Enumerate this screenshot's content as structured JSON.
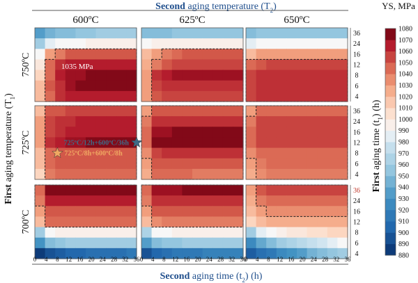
{
  "chart_data": {
    "type": "heatmap",
    "top_title_bold": "Second",
    "top_title_rest": " aging temperature (T",
    "top_title_sub": "2",
    "top_title_end": ")",
    "bottom_title_bold": "Second",
    "bottom_title_rest": " aging time (t",
    "bottom_title_sub": "2",
    "bottom_title_end": ") (h)",
    "left_title_bold": "First",
    "left_title_rest": " aging temperature (T",
    "left_title_sub": "1",
    "left_title_end": ")",
    "right_title_bold": "First",
    "right_title_rest": " aging time (t",
    "right_title_sub": "1",
    "right_title_end": ") (h)",
    "col_labels": [
      "600ºC",
      "625ºC",
      "650ºC"
    ],
    "row_labels": [
      "750ºC",
      "725ºC",
      "700ºC"
    ],
    "x_ticks": [
      0,
      4,
      8,
      12,
      16,
      20,
      24,
      28,
      32,
      36
    ],
    "y_ticks": [
      4,
      6,
      8,
      12,
      16,
      24,
      36
    ],
    "colorbar": {
      "title": "YS, MPa",
      "min": 880,
      "max": 1080,
      "ticks": [
        880,
        890,
        900,
        910,
        920,
        930,
        940,
        950,
        960,
        970,
        980,
        990,
        1000,
        1010,
        1020,
        1030,
        1040,
        1050,
        1060,
        1070,
        1080
      ]
    },
    "annotations": [
      {
        "text": "1035 MPa",
        "row": 0,
        "col": 0
      },
      {
        "text": "725ºC/12h+600ºC/36h",
        "row": 1,
        "col": 0,
        "x": 36,
        "y": 12,
        "marker": "star",
        "color": "#3f6a86"
      },
      {
        "text": "725ºC/8h+600ºC/8h",
        "row": 1,
        "col": 0,
        "x": 8,
        "y": 8,
        "marker": "star",
        "color": "#f0a862"
      }
    ],
    "panels": [
      {
        "row": 0,
        "col": 0,
        "t1": [
          {
            "t1": 36,
            "ys": [
              935,
              945,
              950,
              950,
              955,
              955,
              960,
              960,
              960,
              960
            ]
          },
          {
            "t1": 24,
            "ys": [
              960,
              985,
              990,
              990,
              990,
              995,
              995,
              995,
              995,
              995
            ]
          },
          {
            "t1": 16,
            "ys": [
              990,
              1030,
              1040,
              1050,
              1050,
              1050,
              1050,
              1050,
              1050,
              1050
            ]
          },
          {
            "t1": 12,
            "ys": [
              1000,
              1045,
              1060,
              1065,
              1065,
              1065,
              1065,
              1065,
              1065,
              1065
            ]
          },
          {
            "t1": 8,
            "ys": [
              1010,
              1045,
              1065,
              1070,
              1070,
              1075,
              1075,
              1075,
              1075,
              1075
            ]
          },
          {
            "t1": 6,
            "ys": [
              1020,
              1050,
              1060,
              1070,
              1075,
              1075,
              1075,
              1075,
              1075,
              1075
            ]
          },
          {
            "t1": 4,
            "ys": [
              1020,
              1045,
              1060,
              1065,
              1065,
              1065,
              1065,
              1065,
              1065,
              1065
            ]
          }
        ]
      },
      {
        "row": 0,
        "col": 1,
        "t1": [
          {
            "t1": 36,
            "ys": [
              950,
              950,
              950,
              955,
              955,
              955,
              955,
              955,
              955,
              955
            ]
          },
          {
            "t1": 24,
            "ys": [
              990,
              995,
              995,
              995,
              995,
              995,
              995,
              995,
              995,
              995
            ]
          },
          {
            "t1": 16,
            "ys": [
              1020,
              1030,
              1040,
              1045,
              1050,
              1050,
              1050,
              1050,
              1050,
              1050
            ]
          },
          {
            "t1": 12,
            "ys": [
              1025,
              1040,
              1050,
              1055,
              1055,
              1055,
              1055,
              1055,
              1055,
              1055
            ]
          },
          {
            "t1": 8,
            "ys": [
              1030,
              1060,
              1065,
              1070,
              1070,
              1070,
              1070,
              1070,
              1070,
              1070
            ]
          },
          {
            "t1": 6,
            "ys": [
              1030,
              1055,
              1060,
              1060,
              1060,
              1060,
              1060,
              1060,
              1060,
              1060
            ]
          },
          {
            "t1": 4,
            "ys": [
              1030,
              1050,
              1055,
              1055,
              1055,
              1055,
              1055,
              1055,
              1055,
              1055
            ]
          }
        ]
      },
      {
        "row": 0,
        "col": 2,
        "t1": [
          {
            "t1": 36,
            "ys": [
              950,
              955,
              955,
              955,
              955,
              955,
              955,
              955,
              955,
              955
            ]
          },
          {
            "t1": 24,
            "ys": [
              985,
              990,
              990,
              990,
              990,
              990,
              990,
              990,
              990,
              990
            ]
          },
          {
            "t1": 16,
            "ys": [
              1020,
              1030,
              1030,
              1030,
              1030,
              1030,
              1030,
              1030,
              1030,
              1030
            ]
          },
          {
            "t1": 12,
            "ys": [
              1045,
              1050,
              1055,
              1055,
              1055,
              1055,
              1055,
              1055,
              1055,
              1055
            ]
          },
          {
            "t1": 8,
            "ys": [
              1055,
              1060,
              1060,
              1060,
              1060,
              1060,
              1060,
              1060,
              1060,
              1060
            ]
          },
          {
            "t1": 6,
            "ys": [
              1055,
              1060,
              1060,
              1060,
              1060,
              1060,
              1060,
              1060,
              1060,
              1060
            ]
          },
          {
            "t1": 4,
            "ys": [
              1055,
              1060,
              1060,
              1060,
              1060,
              1060,
              1060,
              1060,
              1060,
              1060
            ]
          }
        ]
      },
      {
        "row": 1,
        "col": 0,
        "t1": [
          {
            "t1": 36,
            "ys": [
              1020,
              1050,
              1050,
              1055,
              1055,
              1055,
              1055,
              1055,
              1055,
              1055
            ]
          },
          {
            "t1": 24,
            "ys": [
              1030,
              1055,
              1060,
              1060,
              1065,
              1065,
              1065,
              1065,
              1065,
              1065
            ]
          },
          {
            "t1": 16,
            "ys": [
              1030,
              1055,
              1060,
              1065,
              1065,
              1065,
              1065,
              1065,
              1065,
              1065
            ]
          },
          {
            "t1": 12,
            "ys": [
              1030,
              1060,
              1065,
              1070,
              1070,
              1075,
              1075,
              1075,
              1075,
              1075
            ]
          },
          {
            "t1": 8,
            "ys": [
              1020,
              1045,
              1050,
              1050,
              1050,
              1050,
              1050,
              1050,
              1050,
              1050
            ]
          },
          {
            "t1": 6,
            "ys": [
              1020,
              1045,
              1050,
              1050,
              1050,
              1050,
              1050,
              1050,
              1050,
              1050
            ]
          },
          {
            "t1": 4,
            "ys": [
              1010,
              1040,
              1045,
              1045,
              1045,
              1045,
              1045,
              1045,
              1045,
              1045
            ]
          }
        ]
      },
      {
        "row": 1,
        "col": 1,
        "t1": [
          {
            "t1": 36,
            "ys": [
              1030,
              1050,
              1050,
              1050,
              1050,
              1050,
              1050,
              1050,
              1050,
              1050
            ]
          },
          {
            "t1": 24,
            "ys": [
              1040,
              1060,
              1060,
              1060,
              1060,
              1060,
              1060,
              1060,
              1060,
              1060
            ]
          },
          {
            "t1": 16,
            "ys": [
              1045,
              1070,
              1070,
              1075,
              1075,
              1075,
              1075,
              1075,
              1075,
              1075
            ]
          },
          {
            "t1": 12,
            "ys": [
              1045,
              1075,
              1075,
              1075,
              1075,
              1075,
              1075,
              1075,
              1075,
              1075
            ]
          },
          {
            "t1": 8,
            "ys": [
              1035,
              1055,
              1060,
              1060,
              1060,
              1060,
              1060,
              1060,
              1060,
              1060
            ]
          },
          {
            "t1": 6,
            "ys": [
              1030,
              1050,
              1050,
              1050,
              1050,
              1050,
              1050,
              1050,
              1050,
              1050
            ]
          },
          {
            "t1": 4,
            "ys": [
              1025,
              1045,
              1045,
              1045,
              1045,
              1040,
              1040,
              1040,
              1040,
              1040
            ]
          }
        ]
      },
      {
        "row": 1,
        "col": 2,
        "t1": [
          {
            "t1": 36,
            "ys": [
              1030,
              1045,
              1045,
              1045,
              1045,
              1045,
              1045,
              1045,
              1045,
              1045
            ]
          },
          {
            "t1": 24,
            "ys": [
              1040,
              1055,
              1055,
              1055,
              1055,
              1055,
              1055,
              1055,
              1055,
              1055
            ]
          },
          {
            "t1": 16,
            "ys": [
              1045,
              1055,
              1055,
              1055,
              1055,
              1055,
              1055,
              1055,
              1055,
              1055
            ]
          },
          {
            "t1": 12,
            "ys": [
              1045,
              1055,
              1055,
              1055,
              1055,
              1055,
              1055,
              1055,
              1055,
              1055
            ]
          },
          {
            "t1": 8,
            "ys": [
              1035,
              1045,
              1045,
              1045,
              1045,
              1045,
              1045,
              1045,
              1045,
              1045
            ]
          },
          {
            "t1": 6,
            "ys": [
              1030,
              1040,
              1045,
              1045,
              1045,
              1045,
              1045,
              1045,
              1045,
              1045
            ]
          },
          {
            "t1": 4,
            "ys": [
              1025,
              1035,
              1040,
              1040,
              1040,
              1040,
              1040,
              1040,
              1040,
              1040
            ]
          }
        ]
      },
      {
        "row": 2,
        "col": 0,
        "t1": [
          {
            "t1": 36,
            "ys": [
              1045,
              1075,
              1075,
              1075,
              1075,
              1075,
              1075,
              1075,
              1075,
              1075
            ]
          },
          {
            "t1": 24,
            "ys": [
              1040,
              1065,
              1065,
              1065,
              1065,
              1065,
              1065,
              1065,
              1065,
              1065
            ]
          },
          {
            "t1": 16,
            "ys": [
              1030,
              1050,
              1050,
              1050,
              1050,
              1050,
              1050,
              1050,
              1050,
              1050
            ]
          },
          {
            "t1": 12,
            "ys": [
              1020,
              1045,
              1045,
              1045,
              1045,
              1045,
              1045,
              1045,
              1045,
              1045
            ]
          },
          {
            "t1": 8,
            "ys": [
              960,
              990,
              995,
              995,
              995,
              995,
              995,
              995,
              995,
              995
            ]
          },
          {
            "t1": 6,
            "ys": [
              930,
              950,
              955,
              960,
              960,
              960,
              960,
              960,
              960,
              960
            ]
          },
          {
            "t1": 4,
            "ys": [
              885,
              895,
              900,
              905,
              905,
              910,
              910,
              910,
              910,
              915
            ]
          }
        ]
      },
      {
        "row": 2,
        "col": 1,
        "t1": [
          {
            "t1": 36,
            "ys": [
              1045,
              1070,
              1070,
              1070,
              1075,
              1075,
              1075,
              1075,
              1075,
              1075
            ]
          },
          {
            "t1": 24,
            "ys": [
              1040,
              1060,
              1060,
              1060,
              1060,
              1060,
              1060,
              1060,
              1060,
              1060
            ]
          },
          {
            "t1": 16,
            "ys": [
              1030,
              1050,
              1050,
              1050,
              1050,
              1050,
              1050,
              1050,
              1050,
              1050
            ]
          },
          {
            "t1": 12,
            "ys": [
              1020,
              1035,
              1040,
              1040,
              1040,
              1040,
              1040,
              1040,
              1040,
              1040
            ]
          },
          {
            "t1": 8,
            "ys": [
              965,
              990,
              990,
              995,
              995,
              995,
              995,
              995,
              995,
              995
            ]
          },
          {
            "t1": 6,
            "ys": [
              935,
              950,
              955,
              955,
              960,
              960,
              960,
              960,
              960,
              960
            ]
          },
          {
            "t1": 4,
            "ys": [
              895,
              905,
              910,
              915,
              915,
              915,
              920,
              920,
              920,
              920
            ]
          }
        ]
      },
      {
        "row": 2,
        "col": 2,
        "t1": [
          {
            "t1": 36,
            "ys": [
              1030,
              1050,
              1055,
              1055,
              1055,
              1055,
              1055,
              1055,
              1055,
              1055
            ]
          },
          {
            "t1": 24,
            "ys": [
              1025,
              1040,
              1045,
              1045,
              1045,
              1045,
              1045,
              1045,
              1045,
              1045
            ]
          },
          {
            "t1": 16,
            "ys": [
              1020,
              1030,
              1035,
              1035,
              1035,
              1035,
              1035,
              1035,
              1035,
              1035
            ]
          },
          {
            "t1": 12,
            "ys": [
              1010,
              1020,
              1025,
              1025,
              1025,
              1025,
              1025,
              1025,
              1025,
              1025
            ]
          },
          {
            "t1": 8,
            "ys": [
              960,
              985,
              990,
              995,
              1000,
              1000,
              1005,
              1005,
              1010,
              1010
            ]
          },
          {
            "t1": 6,
            "ys": [
              925,
              940,
              950,
              960,
              965,
              970,
              975,
              980,
              985,
              990
            ]
          },
          {
            "t1": 4,
            "ys": [
              900,
              910,
              915,
              925,
              930,
              935,
              945,
              950,
              955,
              960
            ]
          }
        ]
      }
    ]
  }
}
